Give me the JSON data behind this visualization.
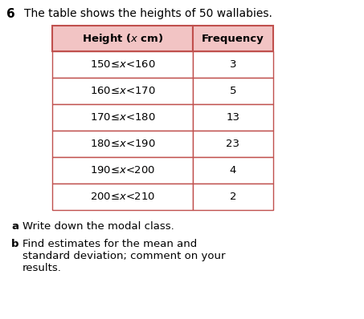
{
  "title_number": "6",
  "title_text": "The table shows the heights of 50 wallabies.",
  "col_headers": [
    "Height (x cm)",
    "Frequency"
  ],
  "rows": [
    [
      "150≤x<160",
      "3"
    ],
    [
      "160≤x<170",
      "5"
    ],
    [
      "170≤x<180",
      "13"
    ],
    [
      "180≤x<190",
      "23"
    ],
    [
      "190≤x<200",
      "4"
    ],
    [
      "200≤x<210",
      "2"
    ]
  ],
  "questions": [
    {
      "label": "a",
      "text": "Write down the modal class."
    },
    {
      "label": "b",
      "text": "Find estimates for the mean and\nstandard deviation; comment on your\nresults."
    }
  ],
  "header_bg": "#f2c4c4",
  "row_bg": "#ffffff",
  "border_color": "#c0504d",
  "header_font_color": "#000000",
  "body_font_color": "#000000",
  "bg_color": "#ffffff",
  "title_color": "#000000",
  "question_color": "#000000",
  "fig_width": 4.53,
  "fig_height": 3.98,
  "dpi": 100
}
